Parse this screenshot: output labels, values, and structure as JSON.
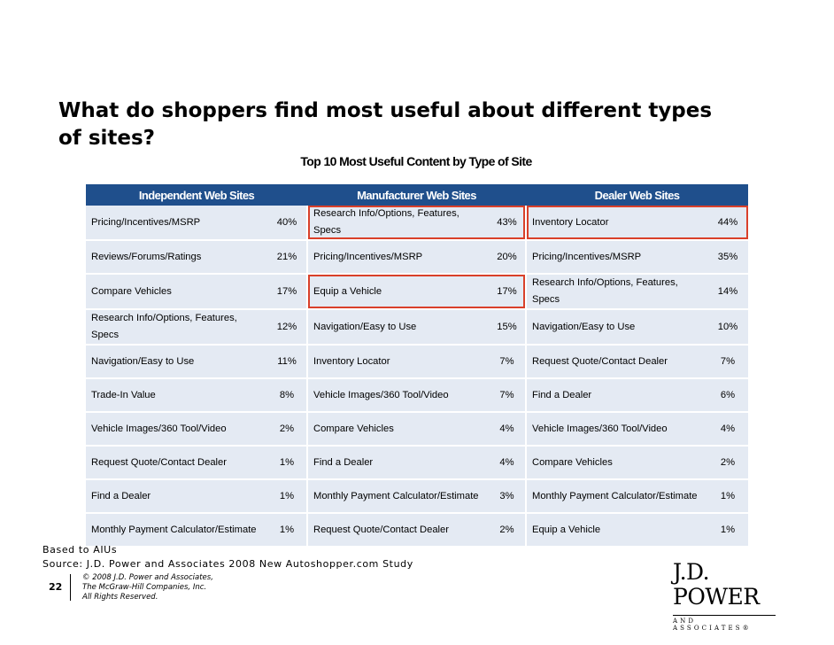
{
  "title": "What do shoppers find most useful about different types of sites?",
  "subtitle": "Top 10 Most Useful Content by Type of Site",
  "columns": [
    "Independent Web Sites",
    "Manufacturer Web Sites",
    "Dealer Web Sites"
  ],
  "rows": [
    [
      {
        "label": "Pricing/Incentives/MSRP",
        "pct": "40%"
      },
      {
        "label": "Research Info/Options, Features, Specs",
        "pct": "43%"
      },
      {
        "label": "Inventory Locator",
        "pct": "44%"
      }
    ],
    [
      {
        "label": "Reviews/Forums/Ratings",
        "pct": "21%"
      },
      {
        "label": "Pricing/Incentives/MSRP",
        "pct": "20%"
      },
      {
        "label": "Pricing/Incentives/MSRP",
        "pct": "35%"
      }
    ],
    [
      {
        "label": "Compare Vehicles",
        "pct": "17%"
      },
      {
        "label": "Equip a Vehicle",
        "pct": "17%"
      },
      {
        "label": "Research Info/Options, Features, Specs",
        "pct": "14%"
      }
    ],
    [
      {
        "label": "Research Info/Options, Features, Specs",
        "pct": "12%"
      },
      {
        "label": "Navigation/Easy to Use",
        "pct": "15%"
      },
      {
        "label": "Navigation/Easy to Use",
        "pct": "10%"
      }
    ],
    [
      {
        "label": "Navigation/Easy to Use",
        "pct": "11%"
      },
      {
        "label": "Inventory Locator",
        "pct": "7%"
      },
      {
        "label": "Request Quote/Contact Dealer",
        "pct": "7%"
      }
    ],
    [
      {
        "label": "Trade-In Value",
        "pct": "8%"
      },
      {
        "label": "Vehicle Images/360 Tool/Video",
        "pct": "7%"
      },
      {
        "label": "Find a Dealer",
        "pct": "6%"
      }
    ],
    [
      {
        "label": "Vehicle Images/360 Tool/Video",
        "pct": "2%"
      },
      {
        "label": "Compare Vehicles",
        "pct": "4%"
      },
      {
        "label": "Vehicle Images/360 Tool/Video",
        "pct": "4%"
      }
    ],
    [
      {
        "label": "Request Quote/Contact Dealer",
        "pct": "1%"
      },
      {
        "label": "Find a Dealer",
        "pct": "4%"
      },
      {
        "label": "Compare Vehicles",
        "pct": "2%"
      }
    ],
    [
      {
        "label": "Find a Dealer",
        "pct": "1%"
      },
      {
        "label": "Monthly Payment Calculator/Estimate",
        "pct": "3%"
      },
      {
        "label": "Monthly Payment Calculator/Estimate",
        "pct": "1%"
      }
    ],
    [
      {
        "label": "Monthly Payment Calculator/Estimate",
        "pct": "1%"
      },
      {
        "label": "Request Quote/Contact Dealer",
        "pct": "2%"
      },
      {
        "label": "Equip a Vehicle",
        "pct": "1%"
      }
    ]
  ],
  "highlight_color": "#d9402a",
  "header_color": "#1f4f8c",
  "row_color": "#e4eaf3",
  "footnote_base": "Based to AIUs",
  "footnote_source": "Source: J.D. Power and Associates 2008 New Autoshopper.com Study",
  "page_number": "22",
  "copyright": [
    "© 2008 J.D. Power and Associates,",
    "The McGraw-Hill Companies, Inc.",
    "All Rights Reserved."
  ],
  "logo": {
    "main": "J.D. POWER",
    "sub": "AND ASSOCIATES®"
  }
}
